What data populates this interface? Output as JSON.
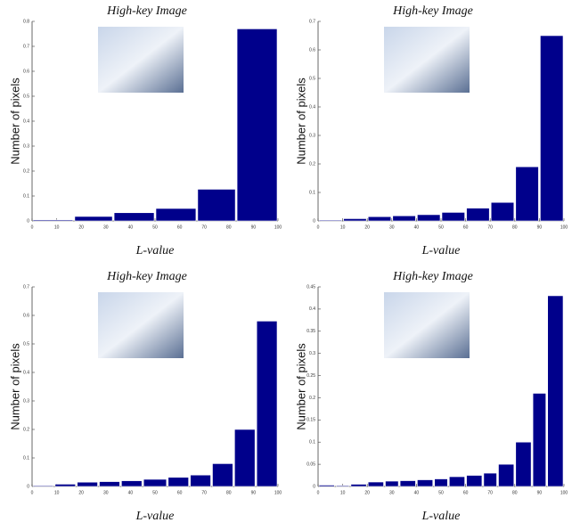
{
  "chart_data": [
    {
      "type": "histogram",
      "title": "High-key Image",
      "xlabel": "L-value",
      "ylabel": "Number of pixels",
      "color": "#00008b",
      "bins": [
        0,
        17,
        33,
        50,
        67,
        83,
        100
      ],
      "values": [
        0.004,
        0.018,
        0.033,
        0.05,
        0.127,
        0.77
      ],
      "xlim": [
        0,
        100
      ],
      "xticks": [
        0,
        10,
        20,
        30,
        40,
        50,
        60,
        70,
        80,
        90,
        100
      ],
      "ylim": [
        0,
        0.8
      ],
      "yticks": [
        0,
        0.1,
        0.2,
        0.3,
        0.4,
        0.5,
        0.6,
        0.7,
        0.8
      ]
    },
    {
      "type": "histogram",
      "title": "High-key Image",
      "xlabel": "L-value",
      "ylabel": "Number of pixels",
      "color": "#00008b",
      "bins": [
        0,
        10,
        20,
        30,
        40,
        50,
        60,
        70,
        80,
        90,
        100
      ],
      "values": [
        0.003,
        0.008,
        0.015,
        0.018,
        0.022,
        0.03,
        0.045,
        0.065,
        0.19,
        0.65
      ],
      "xlim": [
        0,
        100
      ],
      "xticks": [
        0,
        10,
        20,
        30,
        40,
        50,
        60,
        70,
        80,
        90,
        100
      ],
      "ylim": [
        0,
        0.7
      ],
      "yticks": [
        0,
        0.1,
        0.2,
        0.3,
        0.4,
        0.5,
        0.6,
        0.7
      ]
    },
    {
      "type": "histogram",
      "title": "High-key Image",
      "xlabel": "L-value",
      "ylabel": "Number of pixels",
      "color": "#00008b",
      "bins": [
        0,
        9,
        18,
        27,
        36,
        45,
        55,
        64,
        73,
        82,
        91,
        100
      ],
      "values": [
        0.003,
        0.008,
        0.015,
        0.017,
        0.02,
        0.025,
        0.032,
        0.04,
        0.08,
        0.2,
        0.58
      ],
      "xlim": [
        0,
        100
      ],
      "xticks": [
        0,
        10,
        20,
        30,
        40,
        50,
        60,
        70,
        80,
        90,
        100
      ],
      "ylim": [
        0,
        0.7
      ],
      "yticks": [
        0,
        0.1,
        0.2,
        0.3,
        0.4,
        0.5,
        0.6,
        0.7
      ]
    },
    {
      "type": "histogram",
      "title": "High-key Image",
      "xlabel": "L-value",
      "ylabel": "Number of pixels",
      "color": "#00008b",
      "bins": [
        0,
        7,
        13,
        20,
        27,
        33,
        40,
        47,
        53,
        60,
        67,
        73,
        80,
        87,
        93,
        100
      ],
      "values": [
        0.003,
        0.002,
        0.005,
        0.01,
        0.012,
        0.013,
        0.015,
        0.017,
        0.022,
        0.025,
        0.03,
        0.05,
        0.1,
        0.21,
        0.43
      ],
      "xlim": [
        0,
        100
      ],
      "xticks": [
        0,
        10,
        20,
        30,
        40,
        50,
        60,
        70,
        80,
        90,
        100
      ],
      "ylim": [
        0,
        0.45
      ],
      "yticks": [
        0,
        0.05,
        0.1,
        0.15,
        0.2,
        0.25,
        0.3,
        0.35,
        0.4,
        0.45
      ]
    }
  ]
}
